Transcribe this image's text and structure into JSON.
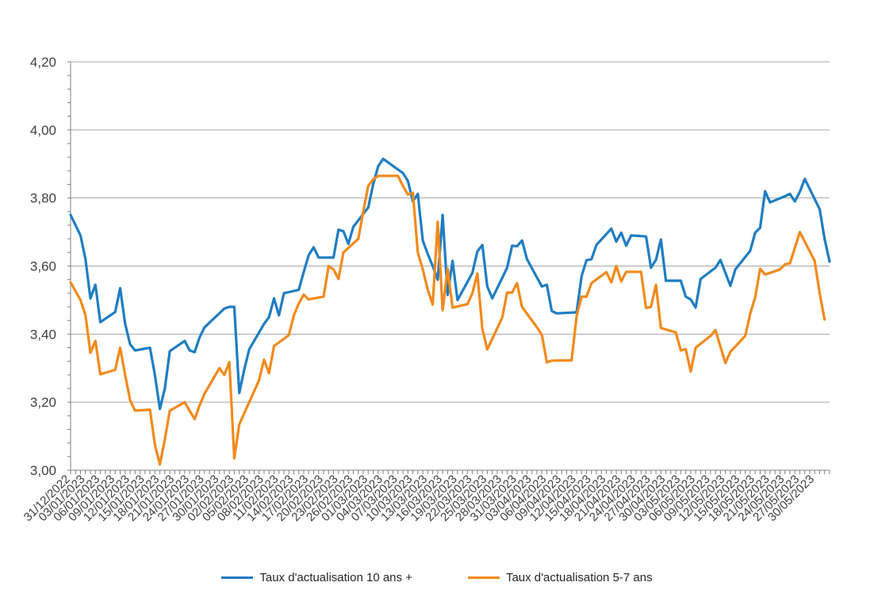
{
  "chart_data": {
    "type": "line",
    "title": "",
    "xlabel": "",
    "ylabel": "",
    "ylim": [
      3.0,
      4.2
    ],
    "ytick_step": 0.2,
    "ytick_labels": [
      "3,00",
      "3,20",
      "3,40",
      "3,60",
      "3,80",
      "4,00",
      "4,20"
    ],
    "grid": true,
    "legend_position": "bottom",
    "x_tick_labels": [
      "31/12/2022",
      "03/01/2023",
      "06/01/2023",
      "09/01/2023",
      "12/01/2023",
      "15/01/2023",
      "18/01/2023",
      "21/01/2023",
      "24/01/2023",
      "27/01/2023",
      "30/01/2023",
      "02/02/2023",
      "05/02/2023",
      "08/02/2023",
      "11/02/2023",
      "14/02/2023",
      "17/02/2023",
      "20/02/2023",
      "23/02/2023",
      "26/02/2023",
      "01/03/2023",
      "04/03/2023",
      "07/03/2023",
      "10/03/2023",
      "13/03/2023",
      "16/03/2023",
      "19/03/2023",
      "22/03/2023",
      "25/03/2023",
      "28/03/2023",
      "31/03/2023",
      "03/04/2023",
      "06/04/2023",
      "09/04/2023",
      "12/04/2023",
      "15/04/2023",
      "18/04/2023",
      "21/04/2023",
      "24/04/2023",
      "27/04/2023",
      "30/04/2023",
      "03/05/2023",
      "06/05/2023",
      "09/05/2023",
      "12/05/2023",
      "15/05/2023",
      "18/05/2023",
      "21/05/2023",
      "24/05/2023",
      "27/05/2023",
      "30/05/2023"
    ],
    "series": [
      {
        "name": "Taux d'actualisation 10 ans +",
        "color": "#1f7dc1",
        "points": [
          [
            0,
            3.75
          ],
          [
            2,
            3.69
          ],
          [
            3,
            3.62
          ],
          [
            4,
            3.505
          ],
          [
            5,
            3.545
          ],
          [
            6,
            3.435
          ],
          [
            9,
            3.465
          ],
          [
            10,
            3.535
          ],
          [
            11,
            3.43
          ],
          [
            12,
            3.37
          ],
          [
            13,
            3.352
          ],
          [
            16,
            3.36
          ],
          [
            17,
            3.28
          ],
          [
            18,
            3.18
          ],
          [
            19,
            3.24
          ],
          [
            20,
            3.35
          ],
          [
            23,
            3.38
          ],
          [
            24,
            3.352
          ],
          [
            25,
            3.347
          ],
          [
            26,
            3.39
          ],
          [
            27,
            3.42
          ],
          [
            31,
            3.475
          ],
          [
            32,
            3.48
          ],
          [
            33,
            3.48
          ],
          [
            34,
            3.227
          ],
          [
            35,
            3.295
          ],
          [
            36,
            3.355
          ],
          [
            39,
            3.43
          ],
          [
            40,
            3.45
          ],
          [
            41,
            3.505
          ],
          [
            42,
            3.455
          ],
          [
            43,
            3.52
          ],
          [
            46,
            3.53
          ],
          [
            47,
            3.583
          ],
          [
            48,
            3.632
          ],
          [
            49,
            3.655
          ],
          [
            50,
            3.625
          ],
          [
            53,
            3.625
          ],
          [
            54,
            3.707
          ],
          [
            55,
            3.702
          ],
          [
            56,
            3.665
          ],
          [
            57,
            3.715
          ],
          [
            60,
            3.772
          ],
          [
            61,
            3.84
          ],
          [
            62,
            3.893
          ],
          [
            63,
            3.915
          ],
          [
            67,
            3.873
          ],
          [
            68,
            3.85
          ],
          [
            69,
            3.79
          ],
          [
            70,
            3.812
          ],
          [
            71,
            3.675
          ],
          [
            72,
            3.635
          ],
          [
            73,
            3.6
          ],
          [
            74,
            3.56
          ],
          [
            75,
            3.75
          ],
          [
            76,
            3.515
          ],
          [
            77,
            3.615
          ],
          [
            78,
            3.5
          ],
          [
            81,
            3.58
          ],
          [
            82,
            3.643
          ],
          [
            83,
            3.662
          ],
          [
            84,
            3.54
          ],
          [
            85,
            3.505
          ],
          [
            88,
            3.595
          ],
          [
            89,
            3.66
          ],
          [
            90,
            3.658
          ],
          [
            91,
            3.675
          ],
          [
            92,
            3.62
          ],
          [
            95,
            3.54
          ],
          [
            96,
            3.545
          ],
          [
            97,
            3.468
          ],
          [
            98,
            3.461
          ],
          [
            102,
            3.464
          ],
          [
            103,
            3.57
          ],
          [
            104,
            3.617
          ],
          [
            105,
            3.62
          ],
          [
            106,
            3.662
          ],
          [
            109,
            3.71
          ],
          [
            110,
            3.672
          ],
          [
            111,
            3.698
          ],
          [
            112,
            3.66
          ],
          [
            113,
            3.69
          ],
          [
            116,
            3.687
          ],
          [
            117,
            3.595
          ],
          [
            118,
            3.618
          ],
          [
            119,
            3.678
          ],
          [
            120,
            3.557
          ],
          [
            123,
            3.557
          ],
          [
            124,
            3.51
          ],
          [
            125,
            3.502
          ],
          [
            126,
            3.478
          ],
          [
            127,
            3.562
          ],
          [
            130,
            3.595
          ],
          [
            131,
            3.618
          ],
          [
            133,
            3.542
          ],
          [
            134,
            3.59
          ],
          [
            137,
            3.645
          ],
          [
            138,
            3.698
          ],
          [
            139,
            3.712
          ],
          [
            140,
            3.82
          ],
          [
            141,
            3.787
          ],
          [
            144,
            3.805
          ],
          [
            145,
            3.812
          ],
          [
            146,
            3.79
          ],
          [
            147,
            3.818
          ],
          [
            148,
            3.856
          ],
          [
            151,
            3.767
          ],
          [
            152,
            3.68
          ],
          [
            153,
            3.613
          ]
        ]
      },
      {
        "name": "Taux d'actualisation 5-7 ans",
        "color": "#f18a1c",
        "points": [
          [
            0,
            3.552
          ],
          [
            2,
            3.5
          ],
          [
            3,
            3.455
          ],
          [
            4,
            3.345
          ],
          [
            5,
            3.38
          ],
          [
            6,
            3.282
          ],
          [
            9,
            3.295
          ],
          [
            10,
            3.36
          ],
          [
            11,
            3.28
          ],
          [
            12,
            3.205
          ],
          [
            13,
            3.175
          ],
          [
            16,
            3.178
          ],
          [
            17,
            3.075
          ],
          [
            18,
            3.017
          ],
          [
            19,
            3.09
          ],
          [
            20,
            3.175
          ],
          [
            23,
            3.2
          ],
          [
            24,
            3.175
          ],
          [
            25,
            3.15
          ],
          [
            26,
            3.19
          ],
          [
            27,
            3.225
          ],
          [
            30,
            3.3
          ],
          [
            31,
            3.28
          ],
          [
            32,
            3.318
          ],
          [
            33,
            3.035
          ],
          [
            34,
            3.135
          ],
          [
            38,
            3.265
          ],
          [
            39,
            3.325
          ],
          [
            40,
            3.285
          ],
          [
            41,
            3.365
          ],
          [
            44,
            3.397
          ],
          [
            45,
            3.455
          ],
          [
            46,
            3.49
          ],
          [
            47,
            3.516
          ],
          [
            48,
            3.502
          ],
          [
            51,
            3.51
          ],
          [
            52,
            3.6
          ],
          [
            53,
            3.59
          ],
          [
            54,
            3.562
          ],
          [
            55,
            3.64
          ],
          [
            58,
            3.68
          ],
          [
            59,
            3.76
          ],
          [
            60,
            3.835
          ],
          [
            61,
            3.855
          ],
          [
            62,
            3.865
          ],
          [
            66,
            3.865
          ],
          [
            67,
            3.835
          ],
          [
            68,
            3.81
          ],
          [
            69,
            3.815
          ],
          [
            70,
            3.64
          ],
          [
            71,
            3.59
          ],
          [
            72,
            3.53
          ],
          [
            73,
            3.487
          ],
          [
            74,
            3.73
          ],
          [
            75,
            3.47
          ],
          [
            76,
            3.592
          ],
          [
            77,
            3.478
          ],
          [
            80,
            3.488
          ],
          [
            81,
            3.52
          ],
          [
            82,
            3.578
          ],
          [
            83,
            3.415
          ],
          [
            84,
            3.355
          ],
          [
            87,
            3.448
          ],
          [
            88,
            3.522
          ],
          [
            89,
            3.522
          ],
          [
            90,
            3.55
          ],
          [
            91,
            3.48
          ],
          [
            94,
            3.42
          ],
          [
            95,
            3.398
          ],
          [
            96,
            3.317
          ],
          [
            97,
            3.322
          ],
          [
            101,
            3.323
          ],
          [
            102,
            3.452
          ],
          [
            103,
            3.51
          ],
          [
            104,
            3.51
          ],
          [
            105,
            3.55
          ],
          [
            108,
            3.582
          ],
          [
            109,
            3.552
          ],
          [
            110,
            3.6
          ],
          [
            111,
            3.555
          ],
          [
            112,
            3.583
          ],
          [
            115,
            3.583
          ],
          [
            116,
            3.477
          ],
          [
            117,
            3.48
          ],
          [
            118,
            3.545
          ],
          [
            119,
            3.418
          ],
          [
            122,
            3.405
          ],
          [
            123,
            3.352
          ],
          [
            124,
            3.356
          ],
          [
            125,
            3.29
          ],
          [
            126,
            3.36
          ],
          [
            129,
            3.395
          ],
          [
            130,
            3.412
          ],
          [
            132,
            3.315
          ],
          [
            133,
            3.348
          ],
          [
            136,
            3.395
          ],
          [
            137,
            3.46
          ],
          [
            138,
            3.508
          ],
          [
            139,
            3.592
          ],
          [
            140,
            3.575
          ],
          [
            143,
            3.59
          ],
          [
            144,
            3.605
          ],
          [
            145,
            3.608
          ],
          [
            147,
            3.7
          ],
          [
            150,
            3.615
          ],
          [
            151,
            3.52
          ],
          [
            152,
            3.443
          ]
        ]
      }
    ]
  }
}
